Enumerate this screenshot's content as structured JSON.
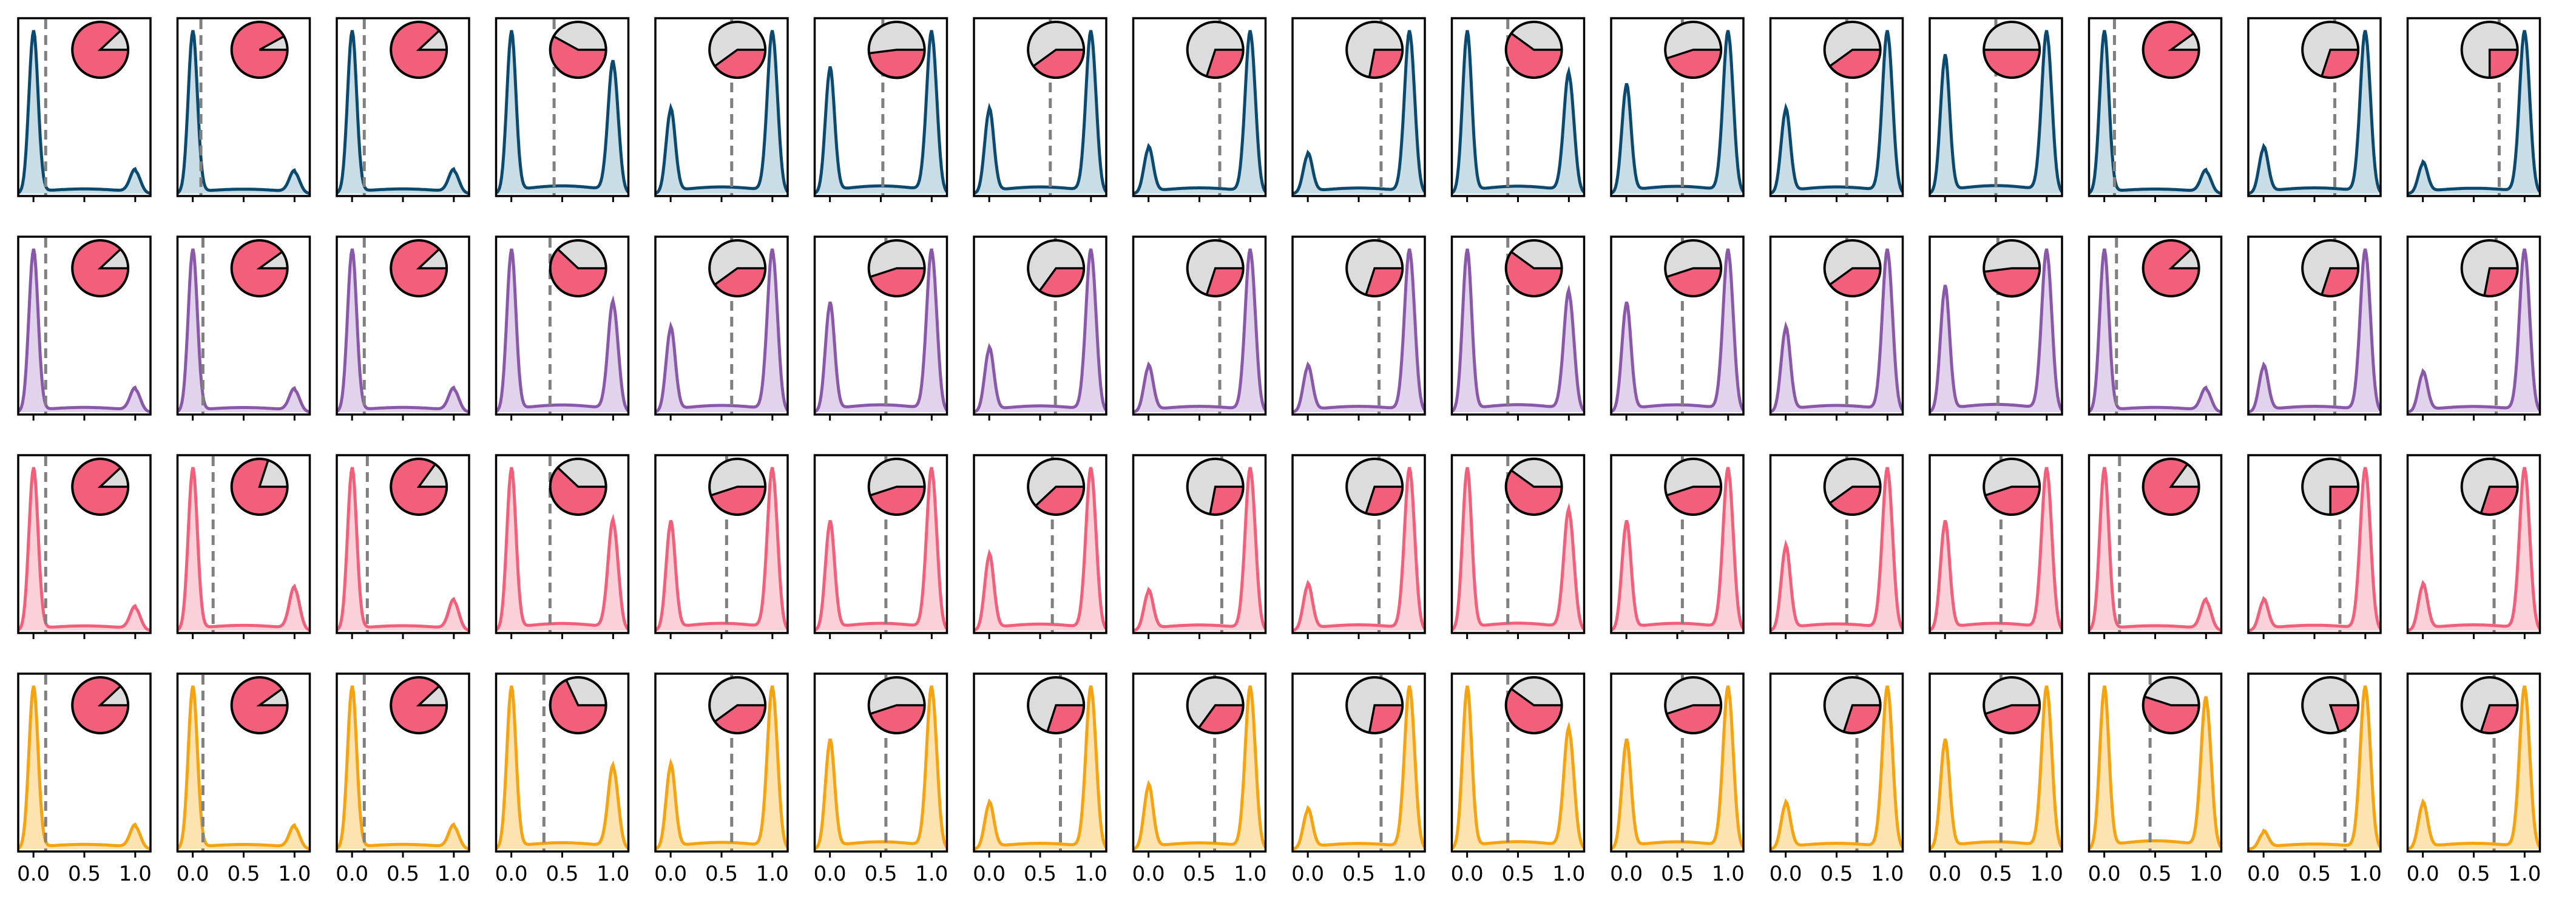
{
  "chart_data": {
    "type": "density-grid",
    "description_of_layout": "4 rows x 16 columns of small density plots with inset pie and dashed median line",
    "x_ticks": [
      0.0,
      0.5,
      1.0
    ],
    "x_tick_labels": [
      "0.0",
      "0.5",
      "1.0"
    ],
    "xlim": [
      -0.15,
      1.15
    ],
    "grid": false,
    "pie_colors": {
      "filled": "#f25f7a",
      "empty": "#dcdcdc"
    },
    "median_line_color": "#808080",
    "rows": [
      {
        "line_color": "#0b4a6e",
        "fill_color": "#c9dde7",
        "medians": [
          0.12,
          0.08,
          0.12,
          0.42,
          0.6,
          0.52,
          0.6,
          0.7,
          0.72,
          0.4,
          0.55,
          0.6,
          0.5,
          0.1,
          0.7,
          0.75
        ]
      },
      {
        "line_color": "#8a58a8",
        "fill_color": "#e2d3ec",
        "medians": [
          0.12,
          0.1,
          0.12,
          0.38,
          0.6,
          0.55,
          0.65,
          0.7,
          0.7,
          0.4,
          0.55,
          0.6,
          0.52,
          0.12,
          0.7,
          0.72
        ]
      },
      {
        "line_color": "#f25f7a",
        "fill_color": "#fbd1d9",
        "medians": [
          0.12,
          0.2,
          0.15,
          0.38,
          0.55,
          0.55,
          0.62,
          0.72,
          0.7,
          0.4,
          0.55,
          0.6,
          0.55,
          0.15,
          0.75,
          0.7
        ]
      },
      {
        "line_color": "#f5a311",
        "fill_color": "#fce3b0",
        "medians": [
          0.12,
          0.1,
          0.12,
          0.32,
          0.6,
          0.55,
          0.7,
          0.65,
          0.72,
          0.4,
          0.55,
          0.7,
          0.55,
          0.45,
          0.8,
          0.7
        ]
      }
    ]
  }
}
